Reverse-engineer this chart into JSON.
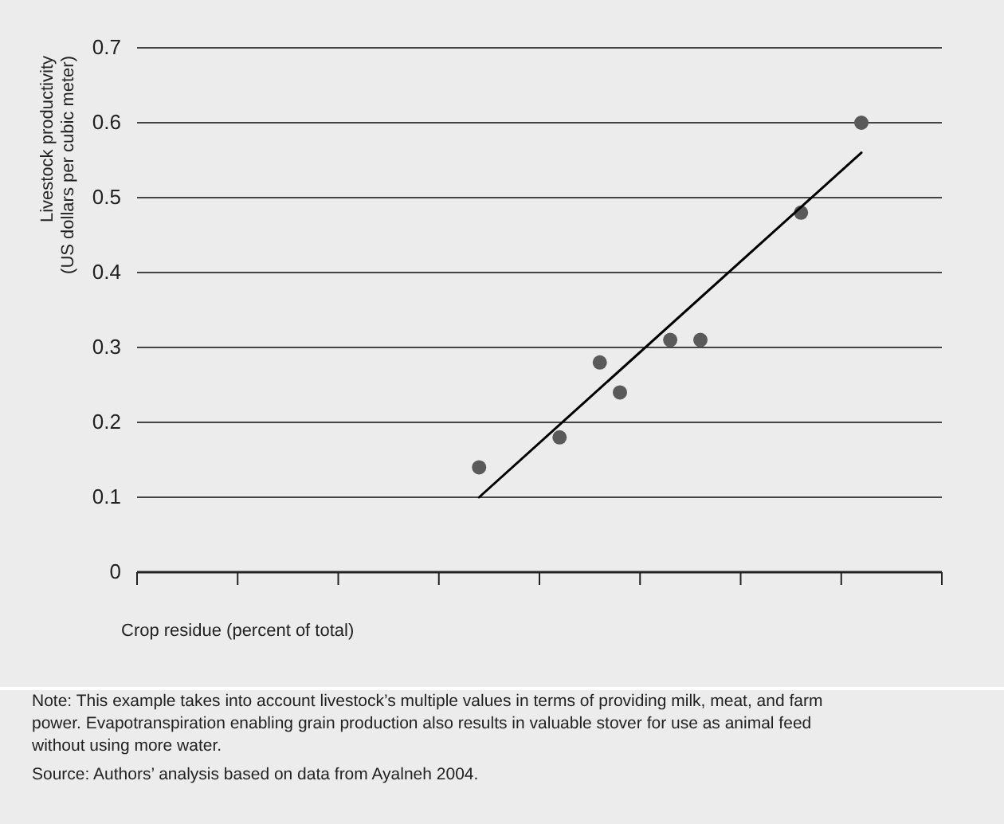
{
  "chart_data": {
    "type": "scatter",
    "xlabel": "Crop residue (percent of total)",
    "ylabel": "Livestock productivity\n(US dollars per cubic meter)",
    "categories": [
      null,
      null,
      null,
      null,
      null,
      null,
      null,
      null,
      null,
      null,
      null,
      null,
      null,
      null,
      null,
      null,
      null,
      null,
      null,
      null,
      null,
      null,
      null,
      null,
      null,
      null,
      null,
      null,
      null,
      null,
      null,
      null,
      null,
      null,
      null,
      null,
      null,
      null,
      null,
      null,
      null,
      null,
      null,
      null,
      null,
      null,
      null,
      null,
      null,
      null,
      null,
      null,
      null,
      null,
      null,
      null,
      null,
      null,
      null,
      null,
      null,
      null,
      null,
      null,
      null,
      null,
      null,
      null,
      null,
      null,
      null,
      null,
      null,
      null,
      null,
      null,
      null,
      null,
      null,
      null,
      null
    ],
    "ylim": [
      0,
      0.7
    ],
    "yticks": [
      0,
      0.1,
      0.2,
      0.3,
      0.4,
      0.5,
      0.6,
      0.7
    ],
    "grid": "y",
    "marker": "circle",
    "series": [
      {
        "color": "#5a5a5a",
        "values": [
          null,
          null,
          null,
          null,
          null,
          null,
          null,
          null,
          null,
          null,
          null,
          null,
          null,
          null,
          null,
          null,
          null,
          null,
          null,
          null,
          null,
          null,
          null,
          null,
          null,
          null,
          null,
          null,
          null,
          null,
          null,
          null,
          null,
          null,
          0.14,
          null,
          null,
          null,
          null,
          null,
          null,
          null,
          0.18,
          null,
          null,
          null,
          0.28,
          null,
          0.24,
          null,
          null,
          null,
          null,
          0.31,
          null,
          null,
          0.31,
          null,
          null,
          null,
          null,
          null,
          null,
          null,
          null,
          null,
          0.48,
          null,
          null,
          null,
          null,
          null,
          0.6,
          null,
          null,
          null,
          null,
          null,
          null,
          null,
          null
        ]
      },
      {
        "type": "line",
        "color": "#000000",
        "marker": "none",
        "line_style": "solid",
        "values": [
          null,
          null,
          null,
          null,
          null,
          null,
          null,
          null,
          null,
          null,
          null,
          null,
          null,
          null,
          null,
          null,
          null,
          null,
          null,
          null,
          null,
          null,
          null,
          null,
          null,
          null,
          null,
          null,
          null,
          null,
          null,
          null,
          null,
          null,
          0.1,
          null,
          null,
          null,
          null,
          null,
          null,
          null,
          null,
          null,
          null,
          null,
          null,
          null,
          null,
          null,
          null,
          null,
          null,
          null,
          null,
          null,
          null,
          null,
          null,
          null,
          null,
          null,
          null,
          null,
          null,
          null,
          null,
          null,
          null,
          null,
          null,
          null,
          0.56,
          null,
          null,
          null,
          null,
          null,
          null,
          null,
          null
        ]
      }
    ],
    "annotations": [
      "Note: This example takes into account livestock’s multiple values in terms of providing milk, meat, and farm power. Evapotranspiration enabling grain production also results in valuable stover for use as animal feed without using more water.",
      "Source: Authors’ analysis based on data from Ayalneh 2004."
    ]
  }
}
